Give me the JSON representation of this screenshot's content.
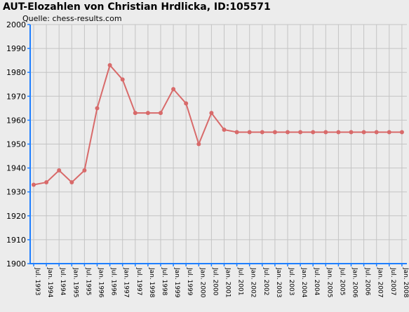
{
  "title": "AUT-Elozahlen von Christian Hrdlicka, ID:105571",
  "subtitle": "Quelle: chess-results.com",
  "colors": {
    "background": "#ececec",
    "grid": "#c4c4c4",
    "axis": "#1e7fff",
    "series": "#d86a6a"
  },
  "chart_data": {
    "type": "line",
    "title": "AUT-Elozahlen von Christian Hrdlicka, ID:105571",
    "subtitle": "Quelle: chess-results.com",
    "xlabel": "",
    "ylabel": "",
    "ylim": [
      1900,
      2000
    ],
    "yticks": [
      1900,
      1910,
      1920,
      1930,
      1940,
      1950,
      1960,
      1970,
      1980,
      1990,
      2000
    ],
    "grid": true,
    "categories": [
      "Jul. 1993",
      "Jan. 1994",
      "Jul. 1994",
      "Jan. 1995",
      "Jul. 1995",
      "Jan. 1996",
      "Jul. 1996",
      "Jan. 1997",
      "Jul. 1997",
      "Jan. 1998",
      "Jul. 1998",
      "Jan. 1999",
      "Jul. 1999",
      "Jan. 2000",
      "Jul. 2000",
      "Jan. 2001",
      "Jul. 2001",
      "Jan. 2002",
      "Jul. 2002",
      "Jan. 2003",
      "Jul. 2003",
      "Jan. 2004",
      "Jul. 2004",
      "Jan. 2005",
      "Jul. 2005",
      "Jan. 2006",
      "Jul. 2006",
      "Jan. 2007",
      "Jul. 2007",
      "Jan. 2008"
    ],
    "series": [
      {
        "values": [
          1933,
          1934,
          1939,
          1934,
          1939,
          1965,
          1983,
          1977,
          1963,
          1963,
          1963,
          1973,
          1967,
          1950,
          1963,
          1956,
          1955,
          1955,
          1955,
          1955,
          1955,
          1955,
          1955,
          1955,
          1955,
          1955,
          1955,
          1955,
          1955,
          1955
        ]
      }
    ]
  }
}
